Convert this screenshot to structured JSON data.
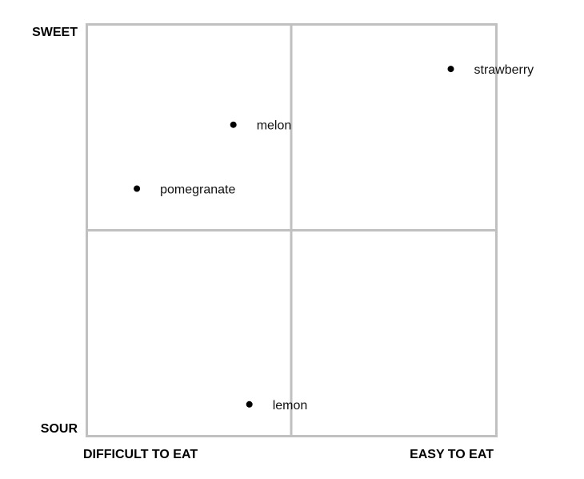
{
  "chart_data": {
    "type": "scatter",
    "title": "",
    "y_axis": {
      "top_label": "SWEET",
      "bottom_label": "SOUR"
    },
    "x_axis": {
      "left_label": "DIFFICULT TO EAT",
      "right_label": "EASY TO EAT"
    },
    "xlim": [
      0,
      1
    ],
    "ylim": [
      0,
      1
    ],
    "grid": "2x2 quadrants",
    "colors": {
      "grid": "#c0c0c0",
      "point": "#000000"
    },
    "points": [
      {
        "label": "strawberry",
        "x": 0.888,
        "y": 0.891
      },
      {
        "label": "melon",
        "x": 0.358,
        "y": 0.756
      },
      {
        "label": "pomegranate",
        "x": 0.123,
        "y": 0.601
      },
      {
        "label": "lemon",
        "x": 0.397,
        "y": 0.078
      }
    ]
  }
}
